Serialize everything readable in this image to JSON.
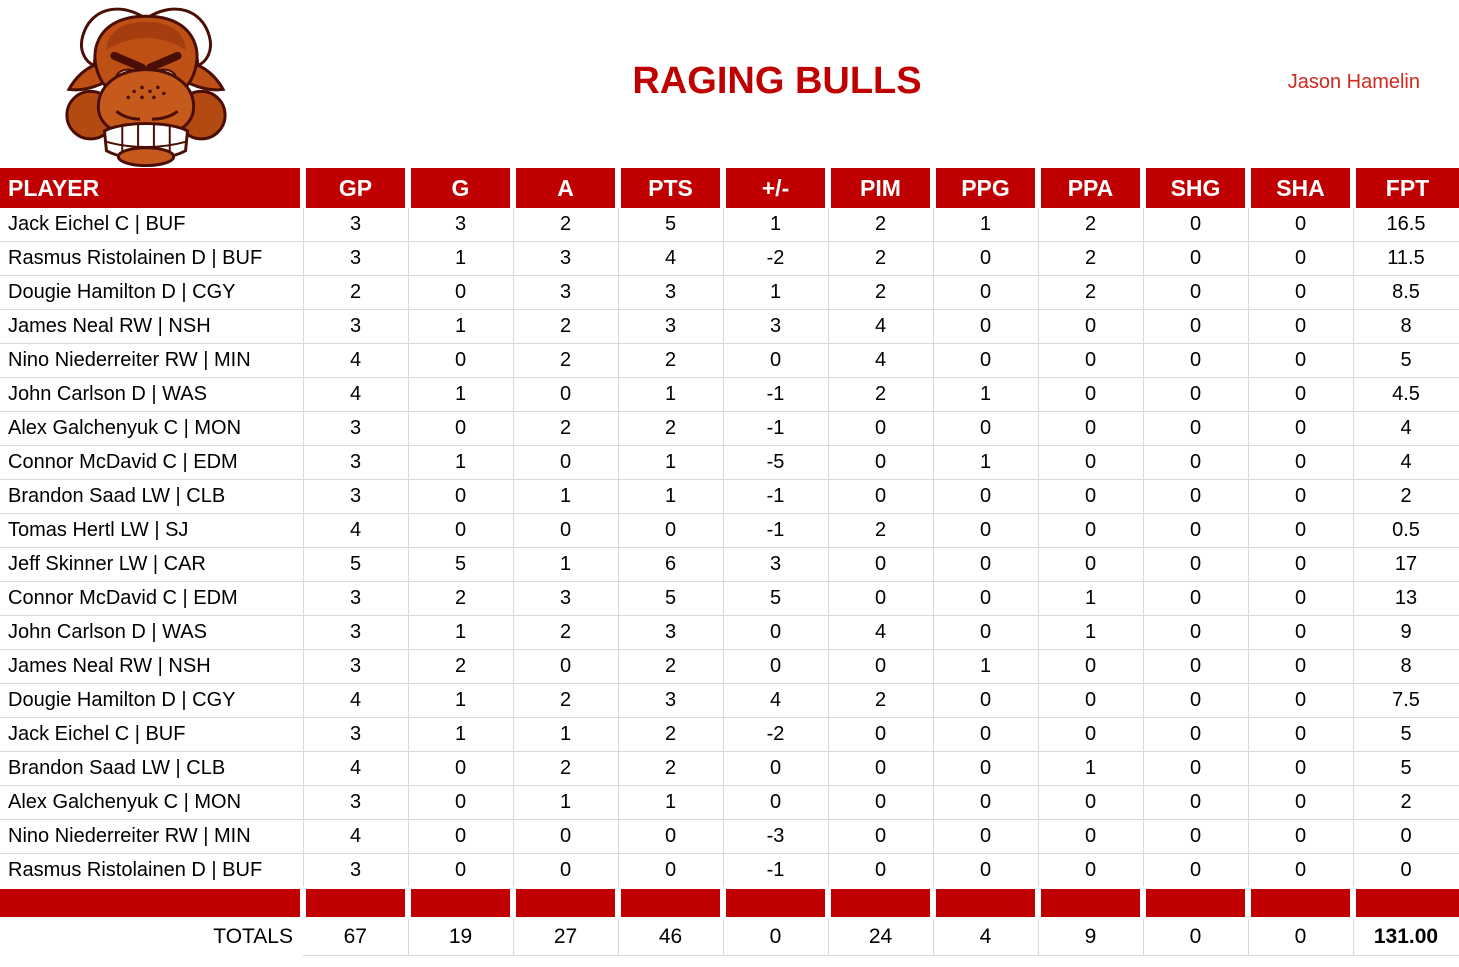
{
  "header": {
    "title": "RAGING BULLS",
    "owner": "Jason Hamelin",
    "logo_icon": "angry-bull-head"
  },
  "colors": {
    "brand_red": "#C00000",
    "owner_red": "#D2281E",
    "grid_gray": "#D9D9D9",
    "text": "#000000"
  },
  "table": {
    "columns": [
      "PLAYER",
      "GP",
      "G",
      "A",
      "PTS",
      "+/-",
      "PIM",
      "PPG",
      "PPA",
      "SHG",
      "SHA",
      "FPT"
    ],
    "players": [
      {
        "player": "Jack Eichel C | BUF",
        "values": [
          "3",
          "3",
          "2",
          "5",
          "1",
          "2",
          "1",
          "2",
          "0",
          "0",
          "16.5"
        ]
      },
      {
        "player": "Rasmus Ristolainen D | BUF",
        "values": [
          "3",
          "1",
          "3",
          "4",
          "-2",
          "2",
          "0",
          "2",
          "0",
          "0",
          "11.5"
        ]
      },
      {
        "player": "Dougie Hamilton D | CGY",
        "values": [
          "2",
          "0",
          "3",
          "3",
          "1",
          "2",
          "0",
          "2",
          "0",
          "0",
          "8.5"
        ]
      },
      {
        "player": "James Neal RW | NSH",
        "values": [
          "3",
          "1",
          "2",
          "3",
          "3",
          "4",
          "0",
          "0",
          "0",
          "0",
          "8"
        ]
      },
      {
        "player": "Nino Niederreiter RW | MIN",
        "values": [
          "4",
          "0",
          "2",
          "2",
          "0",
          "4",
          "0",
          "0",
          "0",
          "0",
          "5"
        ]
      },
      {
        "player": "John Carlson D | WAS",
        "values": [
          "4",
          "1",
          "0",
          "1",
          "-1",
          "2",
          "1",
          "0",
          "0",
          "0",
          "4.5"
        ]
      },
      {
        "player": "Alex Galchenyuk C | MON",
        "values": [
          "3",
          "0",
          "2",
          "2",
          "-1",
          "0",
          "0",
          "0",
          "0",
          "0",
          "4"
        ]
      },
      {
        "player": "Connor McDavid C | EDM",
        "values": [
          "3",
          "1",
          "0",
          "1",
          "-5",
          "0",
          "1",
          "0",
          "0",
          "0",
          "4"
        ]
      },
      {
        "player": "Brandon Saad LW | CLB",
        "values": [
          "3",
          "0",
          "1",
          "1",
          "-1",
          "0",
          "0",
          "0",
          "0",
          "0",
          "2"
        ]
      },
      {
        "player": "Tomas Hertl LW | SJ",
        "values": [
          "4",
          "0",
          "0",
          "0",
          "-1",
          "2",
          "0",
          "0",
          "0",
          "0",
          "0.5"
        ]
      },
      {
        "player": "Jeff Skinner LW | CAR",
        "values": [
          "5",
          "5",
          "1",
          "6",
          "3",
          "0",
          "0",
          "0",
          "0",
          "0",
          "17"
        ]
      },
      {
        "player": "Connor McDavid C | EDM",
        "values": [
          "3",
          "2",
          "3",
          "5",
          "5",
          "0",
          "0",
          "1",
          "0",
          "0",
          "13"
        ]
      },
      {
        "player": "John Carlson D | WAS",
        "values": [
          "3",
          "1",
          "2",
          "3",
          "0",
          "4",
          "0",
          "1",
          "0",
          "0",
          "9"
        ]
      },
      {
        "player": "James Neal RW | NSH",
        "values": [
          "3",
          "2",
          "0",
          "2",
          "0",
          "0",
          "1",
          "0",
          "0",
          "0",
          "8"
        ]
      },
      {
        "player": "Dougie Hamilton D | CGY",
        "values": [
          "4",
          "1",
          "2",
          "3",
          "4",
          "2",
          "0",
          "0",
          "0",
          "0",
          "7.5"
        ]
      },
      {
        "player": "Jack Eichel C | BUF",
        "values": [
          "3",
          "1",
          "1",
          "2",
          "-2",
          "0",
          "0",
          "0",
          "0",
          "0",
          "5"
        ]
      },
      {
        "player": "Brandon Saad LW | CLB",
        "values": [
          "4",
          "0",
          "2",
          "2",
          "0",
          "0",
          "0",
          "1",
          "0",
          "0",
          "5"
        ]
      },
      {
        "player": "Alex Galchenyuk C | MON",
        "values": [
          "3",
          "0",
          "1",
          "1",
          "0",
          "0",
          "0",
          "0",
          "0",
          "0",
          "2"
        ]
      },
      {
        "player": "Nino Niederreiter RW | MIN",
        "values": [
          "4",
          "0",
          "0",
          "0",
          "-3",
          "0",
          "0",
          "0",
          "0",
          "0",
          "0"
        ]
      },
      {
        "player": "Rasmus Ristolainen D | BUF",
        "values": [
          "3",
          "0",
          "0",
          "0",
          "-1",
          "0",
          "0",
          "0",
          "0",
          "0",
          "0"
        ]
      }
    ],
    "totals": {
      "label": "TOTALS",
      "values": [
        "67",
        "19",
        "27",
        "46",
        "0",
        "24",
        "4",
        "9",
        "0",
        "0",
        "131.00"
      ]
    }
  }
}
